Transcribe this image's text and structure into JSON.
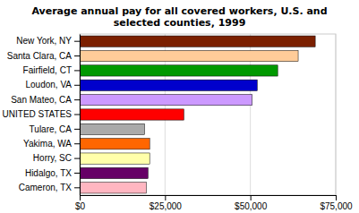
{
  "chart_data": {
    "type": "bar",
    "orientation": "horizontal",
    "title": "Average annual pay for all covered workers, U.S. and\nselected counties, 1999",
    "categories": [
      "Cameron, TX",
      "Hidalgo, TX",
      "Horry, SC",
      "Yakima, WA",
      "Tulare, CA",
      "UNITED STATES",
      "San Mateo, CA",
      "Loudon, VA",
      "Fairfield, CT",
      "Santa Clara, CA",
      "New York, NY"
    ],
    "values": [
      19500,
      20000,
      20500,
      20500,
      19000,
      30500,
      50500,
      52000,
      58000,
      64000,
      69000
    ],
    "colors": [
      "#FFB6C1",
      "#660066",
      "#FFFFAA",
      "#FF6600",
      "#AAAAAA",
      "#FF0000",
      "#CC99FF",
      "#0000CC",
      "#009900",
      "#FFCC99",
      "#7B2000"
    ],
    "xlim": [
      0,
      75000
    ],
    "xticks": [
      {
        "value": 0,
        "label": "$0"
      },
      {
        "value": 25000,
        "label": "$25,000"
      },
      {
        "value": 50000,
        "label": "$50,000"
      },
      {
        "value": 75000,
        "label": "$75,000"
      }
    ],
    "grid": true
  }
}
